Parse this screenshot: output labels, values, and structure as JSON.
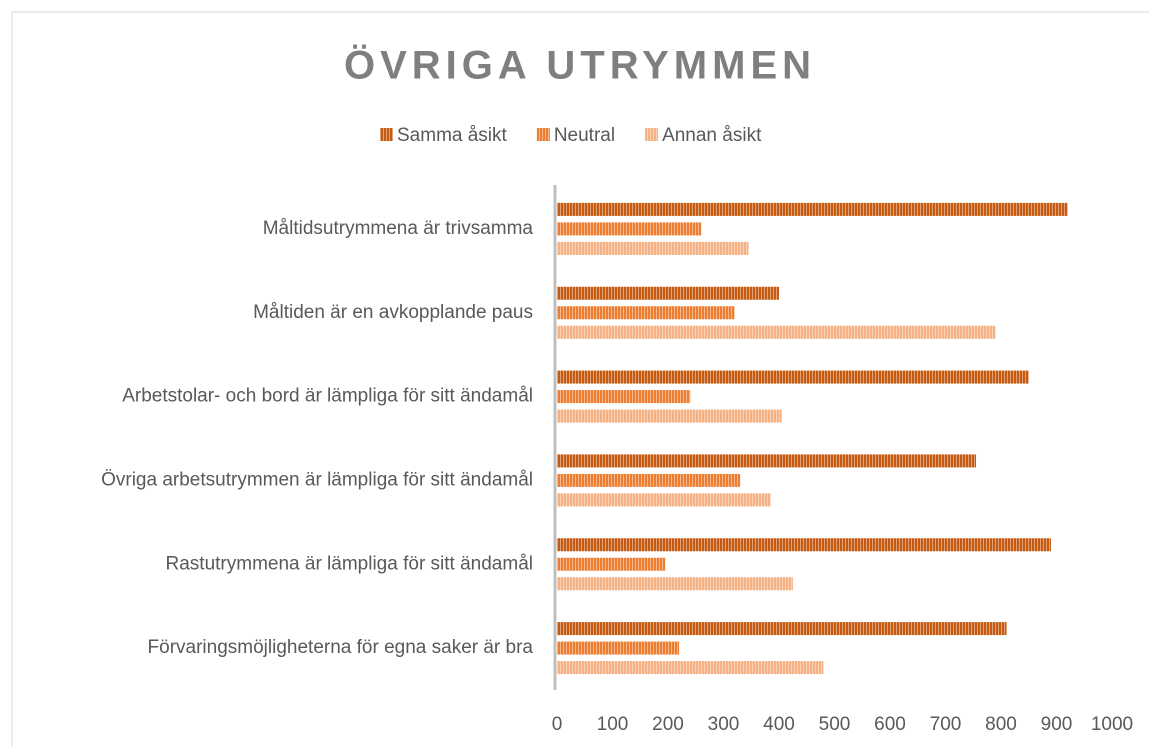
{
  "chart_data": {
    "type": "bar",
    "orientation": "horizontal",
    "title": "ÖVRIGA UTRYMMEN",
    "categories": [
      "Måltidsutrymmena är trivsamma",
      "Måltiden är en avkopplande paus",
      "Arbetstolar- och bord är lämpliga för sitt ändamål",
      "Övriga arbetsutrymmen är lämpliga för sitt ändamål",
      "Rastutrymmena är lämpliga för sitt ändamål",
      "Förvaringsmöjligheterna för egna saker är bra"
    ],
    "series": [
      {
        "name": "Samma åsikt",
        "color": "#c55a11",
        "values": [
          920,
          400,
          850,
          755,
          890,
          810
        ]
      },
      {
        "name": "Neutral",
        "color": "#ed7d31",
        "values": [
          260,
          320,
          240,
          330,
          195,
          220
        ]
      },
      {
        "name": "Annan åsikt",
        "color": "#f4b183",
        "values": [
          345,
          790,
          405,
          385,
          425,
          480
        ]
      }
    ],
    "xlim": [
      0,
      1000
    ],
    "xticks": [
      0,
      100,
      200,
      300,
      400,
      500,
      600,
      700,
      800,
      900,
      1000
    ],
    "grid": false,
    "legend": "top"
  }
}
